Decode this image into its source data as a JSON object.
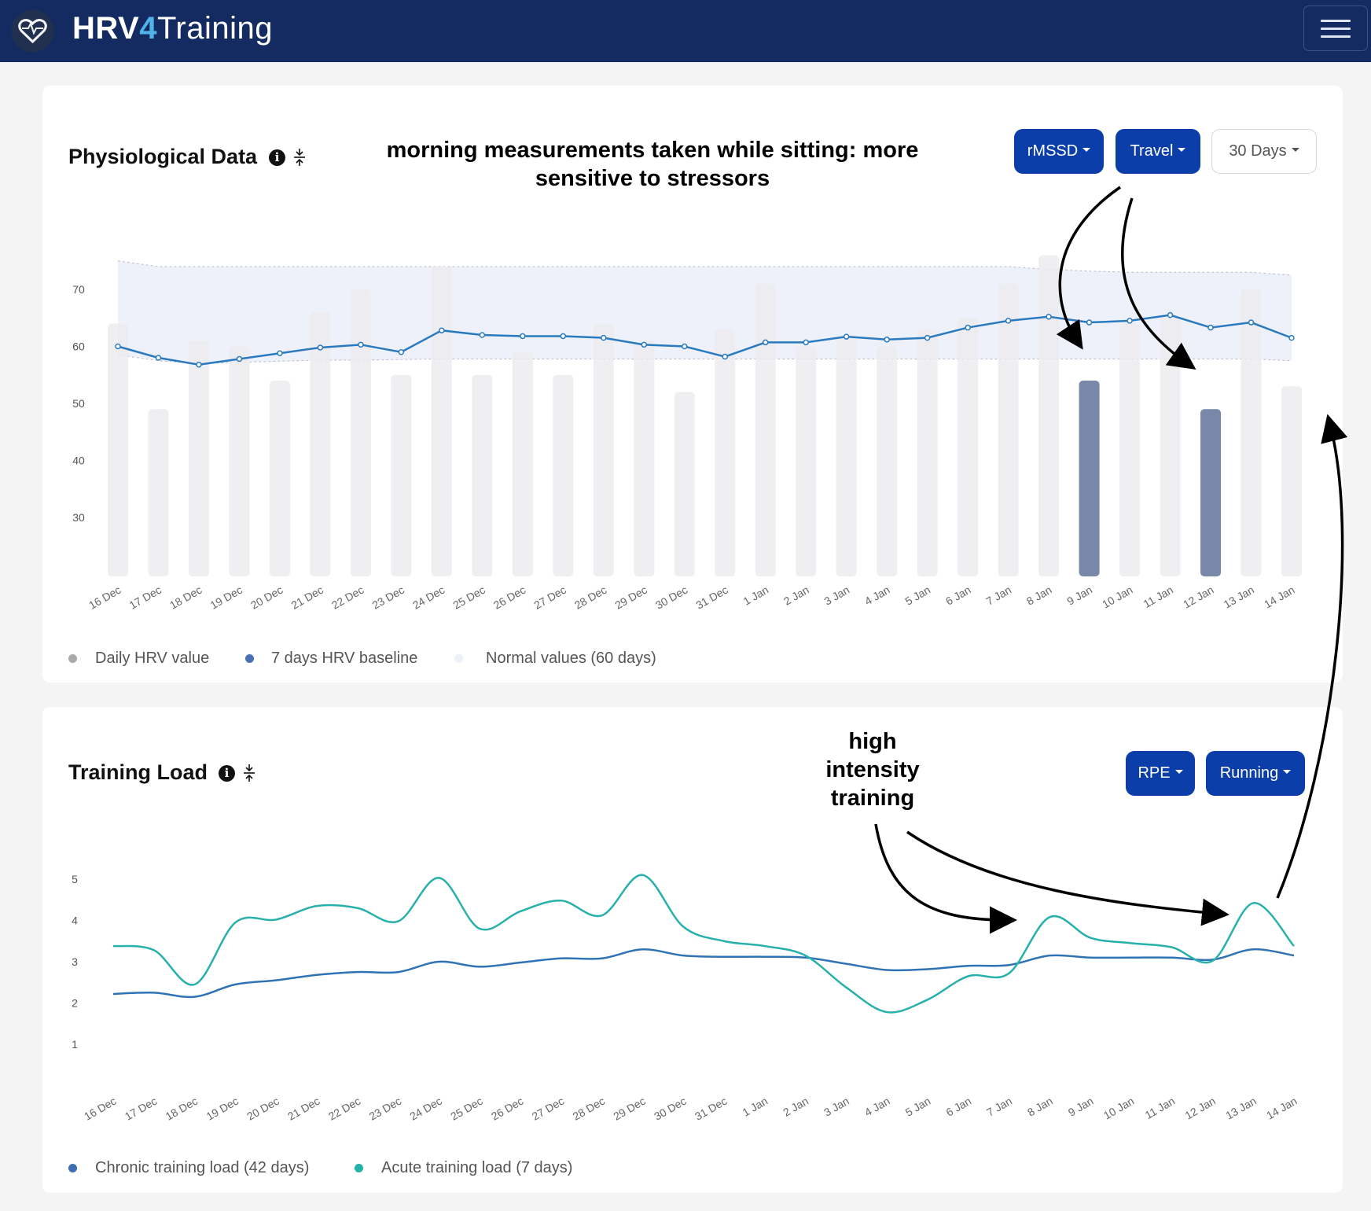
{
  "navbar": {
    "brand_part1": "HRV",
    "brand_part2": "4",
    "brand_part3": "Training",
    "logo_icon": "heart-logo-icon",
    "menu_icon": "hamburger-menu-icon"
  },
  "physiological": {
    "title": "Physiological Data",
    "info_icon": "i",
    "annotation": "morning measurements taken while sitting: more sensitive to stressors",
    "buttons": {
      "metric": "rMSSD",
      "tag": "Travel",
      "range": "30 Days"
    },
    "legend": [
      "Daily HRV value",
      "7 days HRV baseline",
      "Normal values (60 days)"
    ]
  },
  "training": {
    "title": "Training Load",
    "info_icon": "i",
    "annotation": "high intensity training",
    "buttons": {
      "metric": "RPE",
      "sport": "Running"
    },
    "legend": [
      "Chronic training load (42 days)",
      "Acute training load (7 days)"
    ]
  },
  "colors": {
    "navbar": "#142b62",
    "button": "#0b3ea8",
    "daily_bar": "#ececee",
    "highlight_bar": "#7987a9",
    "baseline": "#2a7abf",
    "normal_band": "#eef1fa",
    "chronic": "#2f73b5",
    "acute": "#28b0aa"
  },
  "chart_data": [
    {
      "type": "bar",
      "categories": [
        "16 Dec",
        "17 Dec",
        "18 Dec",
        "19 Dec",
        "20 Dec",
        "21 Dec",
        "22 Dec",
        "23 Dec",
        "24 Dec",
        "25 Dec",
        "26 Dec",
        "27 Dec",
        "28 Dec",
        "29 Dec",
        "30 Dec",
        "31 Dec",
        "1 Jan",
        "2 Jan",
        "3 Jan",
        "4 Jan",
        "5 Jan",
        "6 Jan",
        "7 Jan",
        "8 Jan",
        "9 Jan",
        "10 Jan",
        "11 Jan",
        "12 Jan",
        "13 Jan",
        "14 Jan"
      ],
      "yticks": [
        30,
        40,
        50,
        60,
        70
      ],
      "ylim": [
        20,
        80
      ],
      "series": [
        {
          "name": "Daily HRV value",
          "type": "bar",
          "values": [
            64,
            49,
            61,
            60,
            54,
            66,
            70,
            55,
            74,
            55,
            59,
            55,
            64,
            61,
            52,
            63,
            71,
            60,
            62,
            60,
            63,
            65,
            71,
            76,
            54,
            64,
            65,
            49,
            70,
            53
          ],
          "highlighted": [
            "9 Jan",
            "12 Jan"
          ]
        },
        {
          "name": "7 days HRV baseline",
          "type": "line",
          "values": [
            60,
            58,
            56.8,
            57.8,
            58.8,
            59.8,
            60.3,
            59,
            62.8,
            62,
            61.8,
            61.8,
            61.5,
            60.3,
            60,
            58.2,
            60.7,
            60.7,
            61.7,
            61.2,
            61.5,
            63.3,
            64.5,
            65.2,
            64.2,
            64.5,
            65.5,
            63.3,
            64.2,
            61.5
          ]
        },
        {
          "name": "Normal values (60 days)",
          "type": "band",
          "upper": [
            75,
            74,
            74,
            74,
            74,
            74,
            74,
            74,
            74,
            74,
            74,
            74,
            74,
            74,
            74,
            74,
            74,
            74,
            74,
            74,
            74,
            74,
            74,
            73.5,
            73.2,
            73,
            73,
            73,
            73,
            72.5
          ],
          "lower": [
            58.5,
            57.5,
            57,
            57.2,
            57.4,
            57.6,
            57.6,
            57.7,
            57.8,
            57.8,
            57.8,
            57.8,
            57.8,
            57.8,
            57.8,
            57.8,
            57.8,
            57.8,
            57.8,
            57.8,
            57.8,
            57.8,
            57.8,
            57.8,
            57.8,
            57.8,
            57.8,
            57.8,
            57.8,
            57.5
          ]
        }
      ]
    },
    {
      "type": "line",
      "categories": [
        "16 Dec",
        "17 Dec",
        "18 Dec",
        "19 Dec",
        "20 Dec",
        "21 Dec",
        "22 Dec",
        "23 Dec",
        "24 Dec",
        "25 Dec",
        "26 Dec",
        "27 Dec",
        "28 Dec",
        "29 Dec",
        "30 Dec",
        "31 Dec",
        "1 Jan",
        "2 Jan",
        "3 Jan",
        "4 Jan",
        "5 Jan",
        "6 Jan",
        "7 Jan",
        "8 Jan",
        "9 Jan",
        "10 Jan",
        "11 Jan",
        "12 Jan",
        "13 Jan",
        "14 Jan"
      ],
      "yticks": [
        1,
        2,
        3,
        4,
        5
      ],
      "ylim": [
        0,
        5.5
      ],
      "series": [
        {
          "name": "Chronic training load (42 days)",
          "values": [
            2.22,
            2.25,
            2.15,
            2.45,
            2.55,
            2.68,
            2.75,
            2.75,
            3.0,
            2.88,
            2.98,
            3.08,
            3.08,
            3.3,
            3.15,
            3.12,
            3.12,
            3.1,
            2.95,
            2.8,
            2.82,
            2.9,
            2.92,
            3.15,
            3.1,
            3.1,
            3.1,
            3.05,
            3.3,
            3.15
          ]
        },
        {
          "name": "Acute training load (7 days)",
          "values": [
            3.38,
            3.28,
            2.45,
            3.95,
            4.02,
            4.35,
            4.3,
            3.98,
            5.03,
            3.8,
            4.22,
            4.48,
            4.12,
            5.1,
            3.85,
            3.5,
            3.38,
            3.15,
            2.38,
            1.78,
            2.08,
            2.65,
            2.72,
            4.08,
            3.58,
            3.45,
            3.35,
            3.02,
            4.42,
            3.38
          ]
        }
      ]
    }
  ]
}
